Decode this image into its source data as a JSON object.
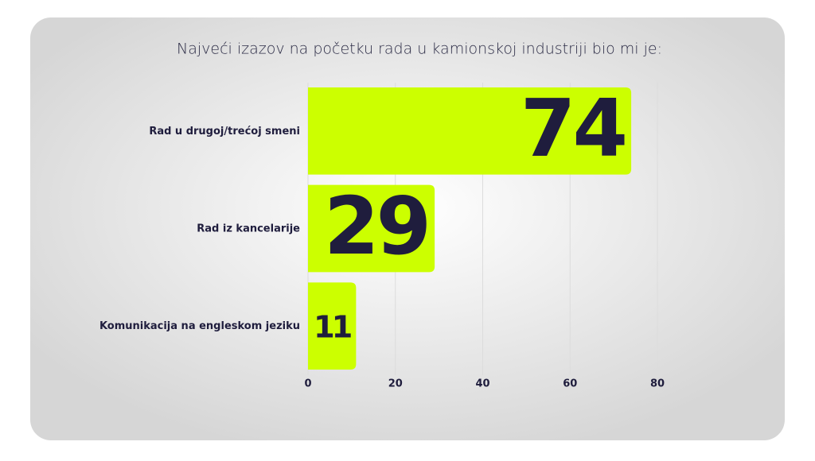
{
  "chart_data": {
    "type": "bar",
    "orientation": "horizontal",
    "title": "Najveći izazov na početku rada u kamionskoj industriji bio mi je:",
    "categories": [
      "Rad u drugoj/trećoj smeni",
      "Rad iz kancelarije",
      "Komunikacija na engleskom jeziku"
    ],
    "values": [
      74,
      29,
      11
    ],
    "color": "#ccff00",
    "xlim": [
      0,
      80
    ],
    "xticks": [
      0,
      20,
      40,
      60,
      80
    ],
    "grid": true
  }
}
